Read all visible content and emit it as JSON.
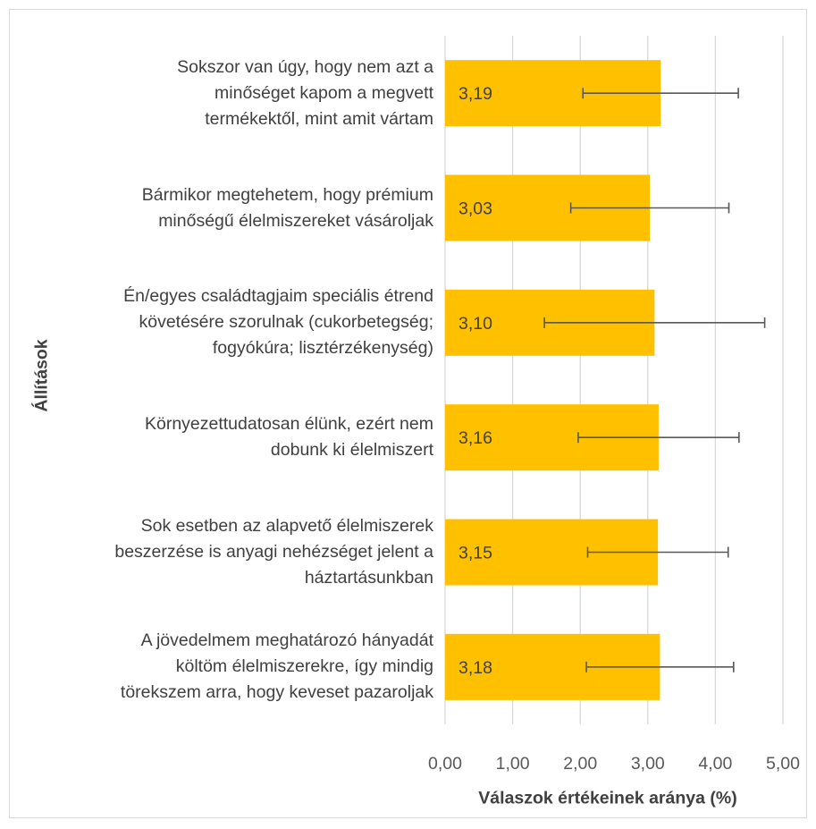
{
  "chart_data": {
    "type": "bar",
    "orientation": "horizontal",
    "xlabel": "Válaszok értékeinek aránya (%)",
    "ylabel": "Állítások",
    "xlim": [
      0,
      5
    ],
    "x_ticks": [
      "0,00",
      "1,00",
      "2,00",
      "3,00",
      "4,00",
      "5,00"
    ],
    "grid": true,
    "bar_color": "#ffc000",
    "error_bar_color": "#595959",
    "categories": [
      "Sokszor van úgy, hogy nem azt a\nminőséget kapom a megvett\ntermékektől, mint amit vártam",
      "Bármikor megtehetem, hogy prémium\nminőségű élelmiszereket vásároljak",
      "Én/egyes családtagjaim speciális étrend\nkövetésére szorulnak (cukorbetegség;\nfogyókúra; lisztérzékenység)",
      "Környezettudatosan élünk, ezért nem\ndobunk ki élelmiszert",
      "Sok esetben az alapvető élelmiszerek\nbeszerzése is anyagi nehézséget jelent a\nháztartásunkban",
      "A jövedelmem meghatározó hányadát\nköltöm élelmiszerekre, így mindig\ntörekszem arra, hogy keveset pazaroljak"
    ],
    "values": [
      3.19,
      3.03,
      3.1,
      3.16,
      3.15,
      3.18
    ],
    "data_labels": [
      "3,19",
      "3,03",
      "3,10",
      "3,16",
      "3,15",
      "3,18"
    ],
    "error": [
      1.15,
      1.17,
      1.63,
      1.19,
      1.04,
      1.09
    ]
  }
}
